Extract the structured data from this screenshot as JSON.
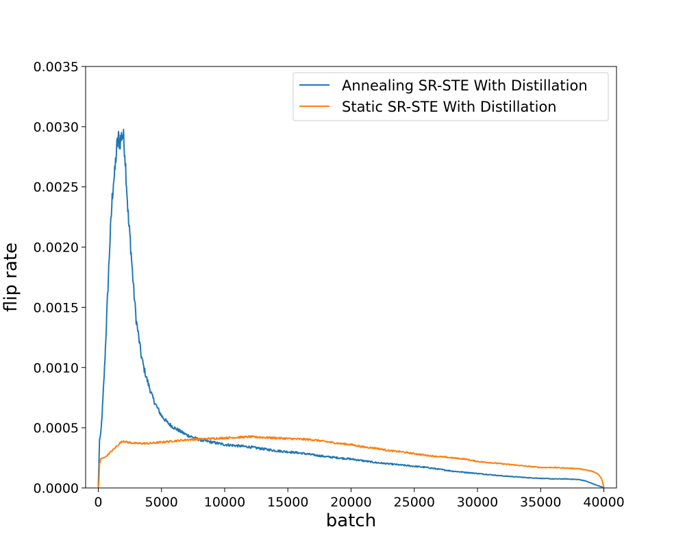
{
  "chart_data": {
    "type": "line",
    "title": "",
    "xlabel": "batch",
    "ylabel": "flip rate",
    "xlim": [
      -1000,
      41000
    ],
    "ylim": [
      0,
      0.0035
    ],
    "xticks": [
      0,
      5000,
      10000,
      15000,
      20000,
      25000,
      30000,
      35000,
      40000
    ],
    "xtick_labels": [
      "0",
      "5000",
      "10000",
      "15000",
      "20000",
      "25000",
      "30000",
      "35000",
      "40000"
    ],
    "yticks": [
      0,
      0.0005,
      0.001,
      0.0015,
      0.002,
      0.0025,
      0.003,
      0.0035
    ],
    "ytick_labels": [
      "0.0000",
      "0.0005",
      "0.0010",
      "0.0015",
      "0.0020",
      "0.0025",
      "0.0030",
      "0.0035"
    ],
    "grid": false,
    "legend_position": "top-right",
    "series": [
      {
        "name": "Annealing SR-STE With Distillation",
        "color": "#1f77b4",
        "noise": 0.03,
        "x": [
          0,
          50,
          100,
          200,
          300,
          400,
          500,
          600,
          700,
          800,
          900,
          1000,
          1100,
          1200,
          1300,
          1400,
          1500,
          1600,
          1700,
          1800,
          1900,
          2000,
          2100,
          2200,
          2300,
          2400,
          2500,
          2600,
          2700,
          2800,
          3000,
          3200,
          3400,
          3600,
          3800,
          4000,
          4300,
          4600,
          5000,
          5500,
          6000,
          6500,
          7000,
          8000,
          9000,
          10000,
          12000,
          14000,
          16000,
          18000,
          20000,
          22000,
          24000,
          26000,
          28000,
          30000,
          32000,
          34000,
          36000,
          37000,
          38000,
          38500,
          39000,
          39500,
          39800,
          40000
        ],
        "y": [
          0.0,
          0.0002,
          0.0004,
          0.00045,
          0.0006,
          0.0008,
          0.001,
          0.00125,
          0.0015,
          0.00175,
          0.002,
          0.0022,
          0.0024,
          0.00255,
          0.0026,
          0.00275,
          0.00285,
          0.0029,
          0.00288,
          0.0029,
          0.00295,
          0.0029,
          0.0028,
          0.0026,
          0.0024,
          0.0022,
          0.0021,
          0.00195,
          0.0018,
          0.00165,
          0.0014,
          0.00125,
          0.0011,
          0.001,
          0.00092,
          0.00085,
          0.00075,
          0.00068,
          0.0006,
          0.00054,
          0.0005,
          0.00047,
          0.00044,
          0.0004,
          0.00038,
          0.00036,
          0.00034,
          0.00031,
          0.00029,
          0.00026,
          0.00024,
          0.00021,
          0.00019,
          0.00017,
          0.00014,
          0.00012,
          0.0001,
          8.5e-05,
          7.5e-05,
          7.5e-05,
          7e-05,
          6e-05,
          4e-05,
          2e-05,
          1e-05,
          0.0
        ]
      },
      {
        "name": "Static SR-STE With Distillation",
        "color": "#ff7f0e",
        "noise": 0.02,
        "x": [
          0,
          50,
          100,
          200,
          400,
          600,
          800,
          1000,
          1200,
          1400,
          1600,
          1800,
          2000,
          2300,
          2600,
          3000,
          3500,
          4000,
          5000,
          6000,
          7000,
          8000,
          9000,
          10000,
          11000,
          12000,
          13000,
          14000,
          15000,
          16000,
          17000,
          18000,
          19000,
          20000,
          21000,
          22000,
          23000,
          24000,
          25000,
          26000,
          27000,
          28000,
          29000,
          30000,
          31000,
          32000,
          33000,
          34000,
          35000,
          36000,
          37000,
          38000,
          38500,
          39000,
          39300,
          39600,
          39800,
          39900,
          40000
        ],
        "y": [
          0.0,
          5e-05,
          0.0002,
          0.00024,
          0.00025,
          0.00026,
          0.00028,
          0.0003,
          0.00032,
          0.00034,
          0.00036,
          0.00038,
          0.00039,
          0.00038,
          0.000375,
          0.00037,
          0.00037,
          0.00037,
          0.00038,
          0.00039,
          0.0004,
          0.000405,
          0.00041,
          0.000415,
          0.00042,
          0.000425,
          0.00042,
          0.000415,
          0.00041,
          0.000405,
          0.0004,
          0.000385,
          0.00037,
          0.00036,
          0.00034,
          0.00033,
          0.00031,
          0.0003,
          0.000285,
          0.00027,
          0.00026,
          0.00025,
          0.00024,
          0.00022,
          0.00021,
          0.0002,
          0.00019,
          0.00018,
          0.00017,
          0.00017,
          0.000165,
          0.00016,
          0.00015,
          0.00014,
          0.00013,
          0.00011,
          8e-05,
          5e-05,
          0.0
        ]
      }
    ]
  }
}
